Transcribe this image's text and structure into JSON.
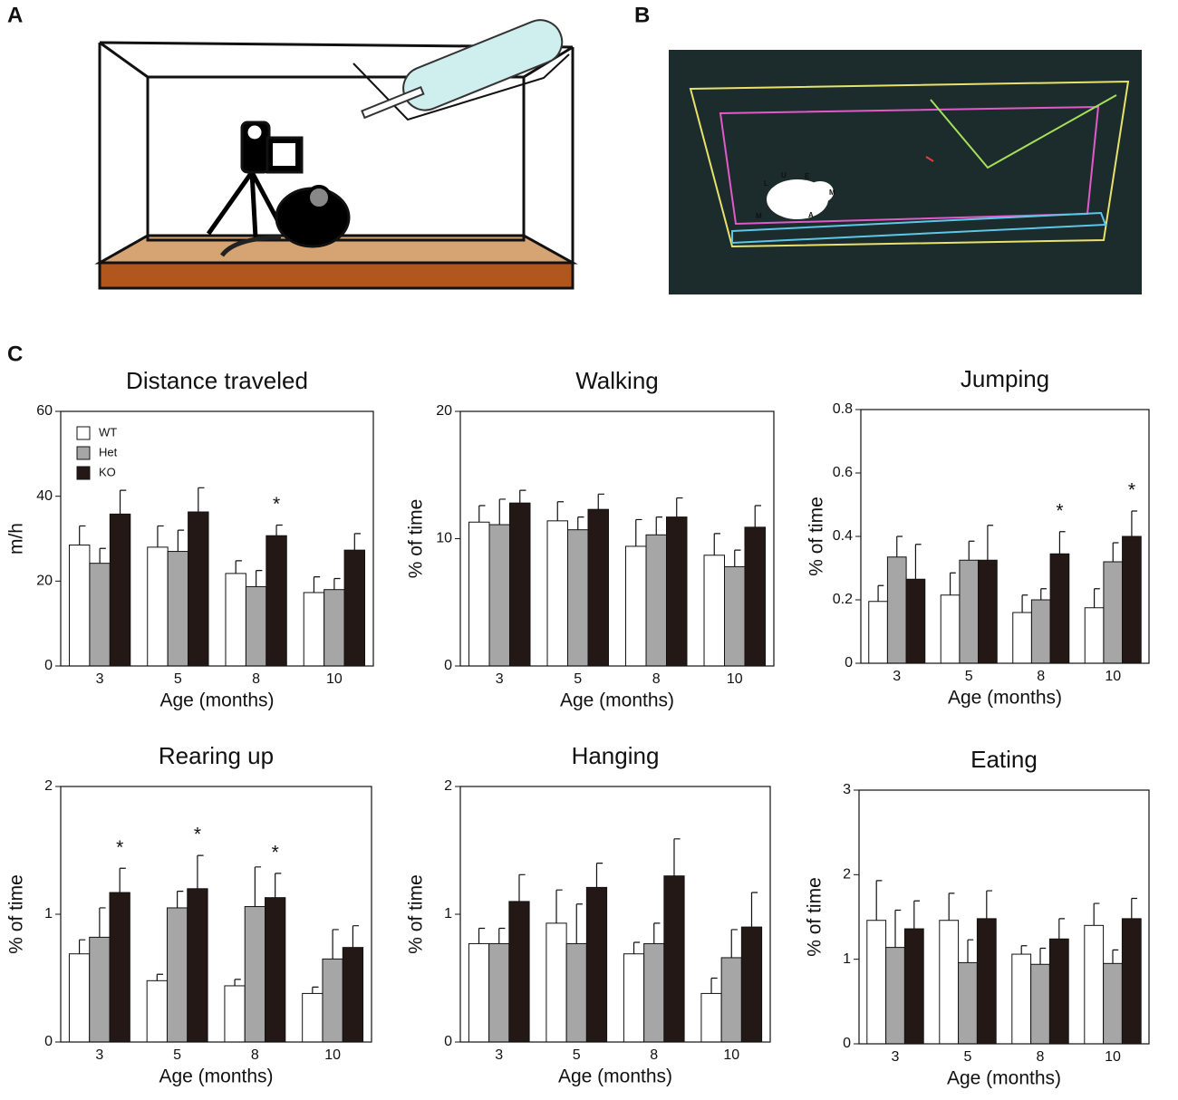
{
  "panel_labels": [
    "A",
    "B",
    "C"
  ],
  "tracking_labels": [
    "L",
    "U",
    "E",
    "M",
    "M",
    "A"
  ],
  "chart_data": [
    {
      "type": "bar",
      "title": "Distance traveled",
      "xlabel": "Age (months)",
      "ylabel": "m/h",
      "categories": [
        "3",
        "5",
        "8",
        "10"
      ],
      "ylim": [
        0,
        60
      ],
      "yticks": [
        0,
        20,
        40,
        60
      ],
      "legend": "upper left",
      "series": [
        {
          "name": "WT",
          "color": "#ffffff",
          "values": [
            28.5,
            28,
            21.8,
            17.3
          ],
          "errors": [
            4.5,
            5,
            3,
            3.7
          ]
        },
        {
          "name": "Het",
          "color": "#a6a6a6",
          "values": [
            24.2,
            27,
            18.7,
            18
          ],
          "errors": [
            3.5,
            5,
            3.8,
            2.6
          ]
        },
        {
          "name": "KO",
          "color": "#231815",
          "values": [
            35.8,
            36.3,
            30.7,
            27.3
          ],
          "errors": [
            5.6,
            5.7,
            2.5,
            3.9
          ]
        }
      ],
      "annotations": [
        {
          "text": "*",
          "x": "8",
          "series": "KO"
        }
      ]
    },
    {
      "type": "bar",
      "title": "Walking",
      "xlabel": "Age (months)",
      "ylabel": "% of time",
      "categories": [
        "3",
        "5",
        "8",
        "10"
      ],
      "ylim": [
        0,
        20
      ],
      "yticks": [
        0,
        10,
        20
      ],
      "series": [
        {
          "name": "WT",
          "color": "#ffffff",
          "values": [
            11.3,
            11.4,
            9.4,
            8.7
          ],
          "errors": [
            1.3,
            1.5,
            2.1,
            1.7
          ]
        },
        {
          "name": "Het",
          "color": "#a6a6a6",
          "values": [
            11.1,
            10.7,
            10.3,
            7.8
          ],
          "errors": [
            2,
            1,
            1.4,
            1.3
          ]
        },
        {
          "name": "KO",
          "color": "#231815",
          "values": [
            12.8,
            12.3,
            11.7,
            10.9
          ],
          "errors": [
            1,
            1.2,
            1.5,
            1.7
          ]
        }
      ],
      "annotations": []
    },
    {
      "type": "bar",
      "title": "Jumping",
      "xlabel": "Age (months)",
      "ylabel": "% of time",
      "categories": [
        "3",
        "5",
        "8",
        "10"
      ],
      "ylim": [
        0,
        0.8
      ],
      "yticks": [
        0,
        0.2,
        0.4,
        0.6,
        0.8
      ],
      "series": [
        {
          "name": "WT",
          "color": "#ffffff",
          "values": [
            0.195,
            0.215,
            0.16,
            0.175
          ],
          "errors": [
            0.05,
            0.07,
            0.055,
            0.06
          ]
        },
        {
          "name": "Het",
          "color": "#a6a6a6",
          "values": [
            0.335,
            0.325,
            0.2,
            0.32
          ],
          "errors": [
            0.065,
            0.06,
            0.035,
            0.06
          ]
        },
        {
          "name": "KO",
          "color": "#231815",
          "values": [
            0.265,
            0.325,
            0.345,
            0.4
          ],
          "errors": [
            0.11,
            0.11,
            0.07,
            0.08
          ]
        }
      ],
      "annotations": [
        {
          "text": "*",
          "x": "8",
          "series": "KO"
        },
        {
          "text": "*",
          "x": "10",
          "series": "KO"
        }
      ]
    },
    {
      "type": "bar",
      "title": "Rearing up",
      "xlabel": "Age (months)",
      "ylabel": "% of time",
      "categories": [
        "3",
        "5",
        "8",
        "10"
      ],
      "ylim": [
        0,
        2
      ],
      "yticks": [
        0,
        1,
        2
      ],
      "series": [
        {
          "name": "WT",
          "color": "#ffffff",
          "values": [
            0.69,
            0.48,
            0.44,
            0.38
          ],
          "errors": [
            0.11,
            0.05,
            0.05,
            0.05
          ]
        },
        {
          "name": "Het",
          "color": "#a6a6a6",
          "values": [
            0.82,
            1.05,
            1.06,
            0.65
          ],
          "errors": [
            0.23,
            0.13,
            0.31,
            0.23
          ]
        },
        {
          "name": "KO",
          "color": "#231815",
          "values": [
            1.17,
            1.2,
            1.13,
            0.74
          ],
          "errors": [
            0.19,
            0.26,
            0.19,
            0.17
          ]
        }
      ],
      "annotations": [
        {
          "text": "*",
          "x": "3",
          "series": "KO"
        },
        {
          "text": "*",
          "x": "5",
          "series": "KO"
        },
        {
          "text": "*",
          "x": "8",
          "series": "KO"
        }
      ]
    },
    {
      "type": "bar",
      "title": "Hanging",
      "xlabel": "Age (months)",
      "ylabel": "% of time",
      "categories": [
        "3",
        "5",
        "8",
        "10"
      ],
      "ylim": [
        0,
        2
      ],
      "yticks": [
        0,
        1,
        2
      ],
      "series": [
        {
          "name": "WT",
          "color": "#ffffff",
          "values": [
            0.77,
            0.93,
            0.69,
            0.38
          ],
          "errors": [
            0.12,
            0.26,
            0.09,
            0.12
          ]
        },
        {
          "name": "Het",
          "color": "#a6a6a6",
          "values": [
            0.77,
            0.77,
            0.77,
            0.66
          ],
          "errors": [
            0.12,
            0.31,
            0.16,
            0.22
          ]
        },
        {
          "name": "KO",
          "color": "#231815",
          "values": [
            1.1,
            1.21,
            1.3,
            0.9
          ],
          "errors": [
            0.21,
            0.19,
            0.29,
            0.27
          ]
        }
      ],
      "annotations": []
    },
    {
      "type": "bar",
      "title": "Eating",
      "xlabel": "Age (months)",
      "ylabel": "% of time",
      "categories": [
        "3",
        "5",
        "8",
        "10"
      ],
      "ylim": [
        0,
        3
      ],
      "yticks": [
        0,
        1,
        2,
        3
      ],
      "series": [
        {
          "name": "WT",
          "color": "#ffffff",
          "values": [
            1.46,
            1.46,
            1.06,
            1.4
          ],
          "errors": [
            0.47,
            0.32,
            0.1,
            0.26
          ]
        },
        {
          "name": "Het",
          "color": "#a6a6a6",
          "values": [
            1.14,
            0.96,
            0.94,
            0.95
          ],
          "errors": [
            0.44,
            0.27,
            0.19,
            0.16
          ]
        },
        {
          "name": "KO",
          "color": "#231815",
          "values": [
            1.36,
            1.48,
            1.24,
            1.48
          ],
          "errors": [
            0.33,
            0.33,
            0.24,
            0.24
          ]
        }
      ],
      "annotations": []
    }
  ]
}
